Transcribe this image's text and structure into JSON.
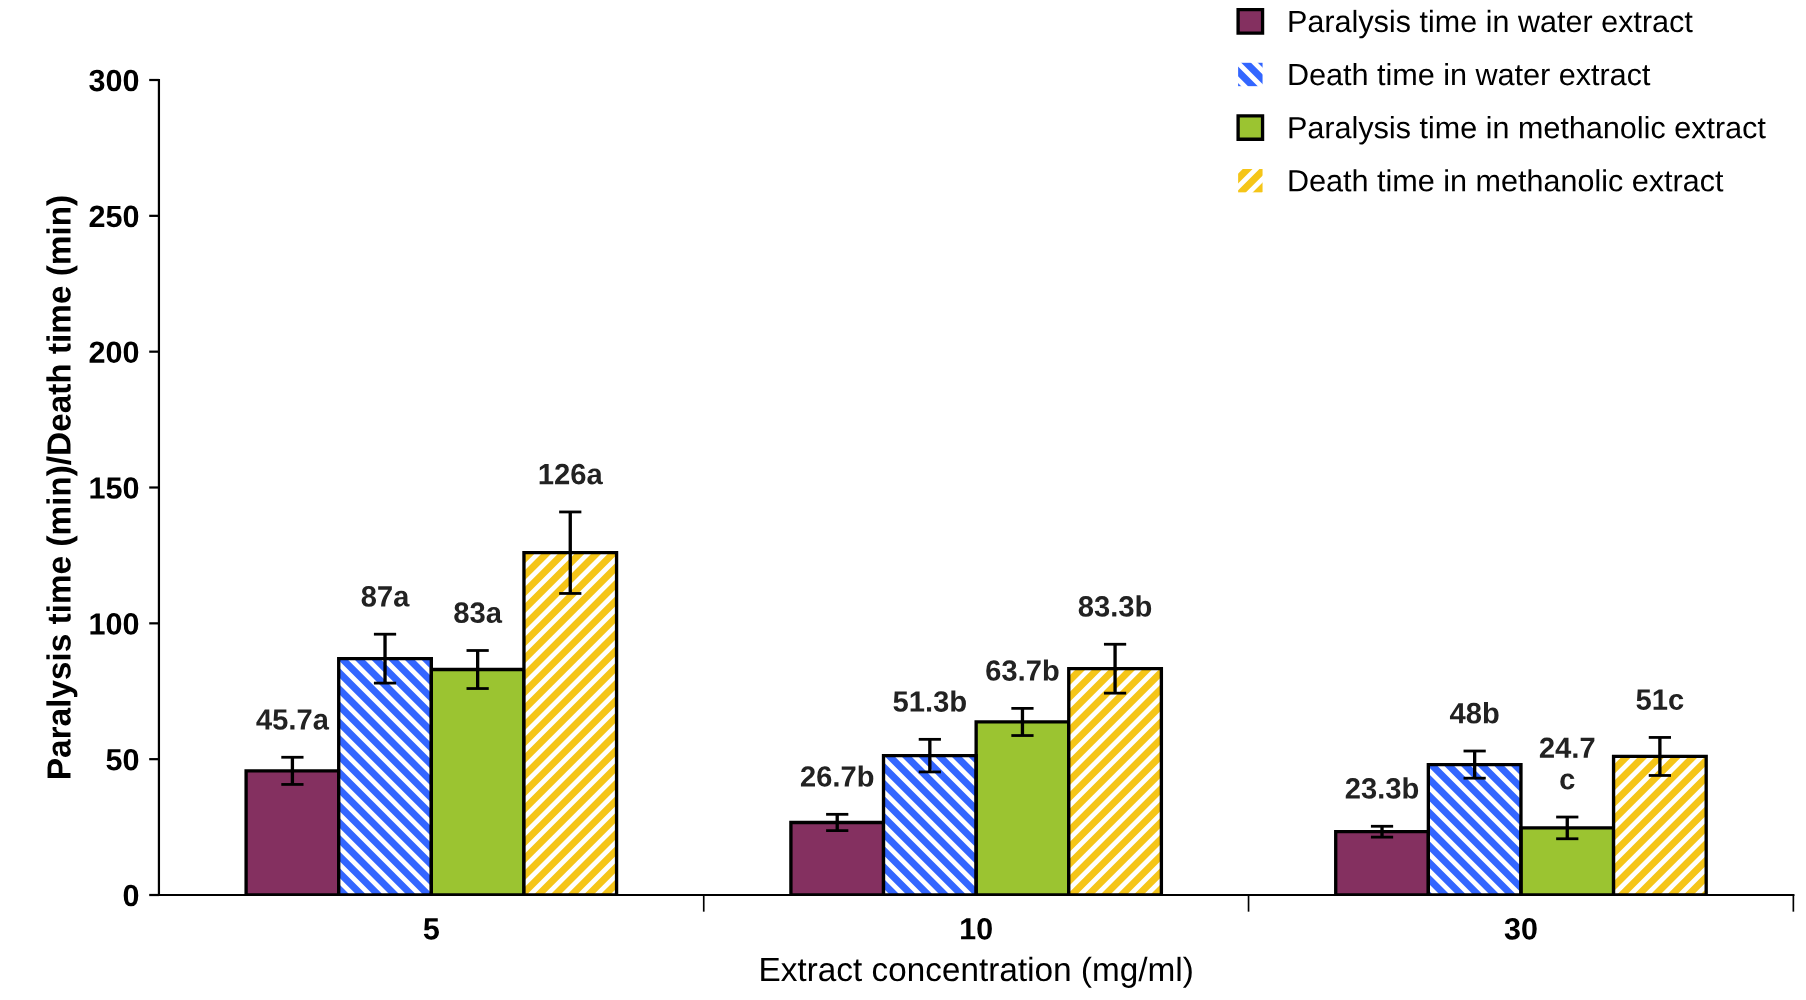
{
  "chart_data": {
    "type": "bar",
    "xlabel": "Extract concentration (mg/ml)",
    "ylabel": "Paralysis time (min)/Death time (min)",
    "categories": [
      "5",
      "10",
      "30"
    ],
    "ylim": [
      0,
      300
    ],
    "yticks": [
      0,
      50,
      100,
      150,
      200,
      250,
      300
    ],
    "grid": false,
    "legend": "top right",
    "series": [
      {
        "name": "Paralysis time in water extract",
        "color": "#843060",
        "values": [
          45.7,
          26.7,
          23.3
        ],
        "errors": [
          5,
          3,
          2
        ],
        "value_labels": [
          "45.7a",
          "26.7b",
          "23.3b"
        ]
      },
      {
        "name": "Death time in water extract",
        "color": "#3366ff",
        "values": [
          87,
          51.3,
          48
        ],
        "errors": [
          9,
          6,
          5
        ],
        "value_labels": [
          "87a",
          "51.3b",
          "48b"
        ]
      },
      {
        "name": "Paralysis time in methanolic extract",
        "color": "#9bc431",
        "values": [
          83,
          63.7,
          24.7
        ],
        "errors": [
          7,
          5,
          4
        ],
        "value_labels": [
          "83a",
          "63.7b",
          "24.7\nc"
        ]
      },
      {
        "name": "Death time in methanolic extract",
        "color": "#f5c518",
        "values": [
          126,
          83.3,
          51
        ],
        "errors": [
          15,
          9,
          7
        ],
        "value_labels": [
          "126a",
          "83.3b",
          "51c"
        ]
      }
    ]
  }
}
